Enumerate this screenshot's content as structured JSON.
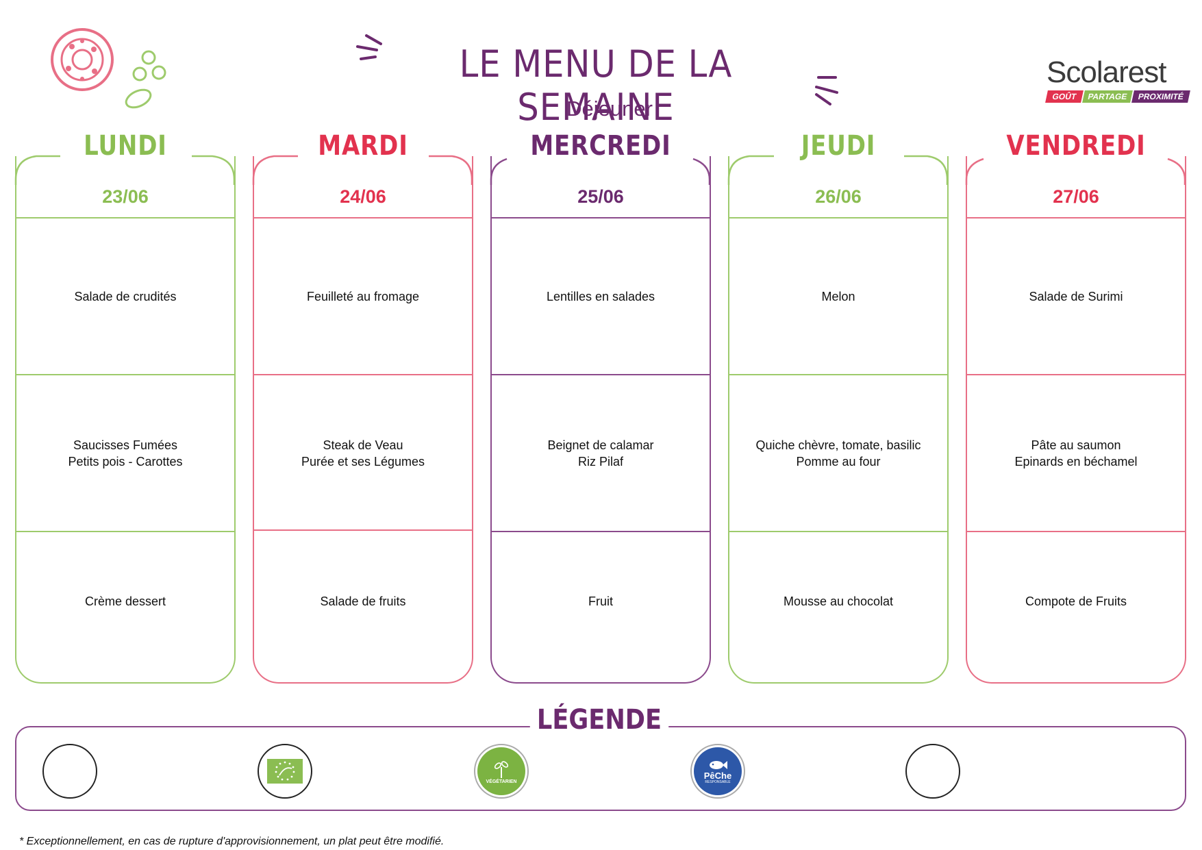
{
  "header": {
    "title": "LE MENU DE LA SEMAINE",
    "subtitle": "Déjeuner"
  },
  "logo": {
    "word": "Scolarest",
    "tagline": [
      "GOÛT",
      "PARTAGE",
      "PROXIMITÉ"
    ]
  },
  "days": [
    {
      "name": "LUNDI",
      "date": "23/06",
      "color": "green",
      "starter": "Salade de crudités",
      "main": "Saucisses Fumées\nPetits pois - Carottes",
      "dessert": "Crème dessert"
    },
    {
      "name": "MARDI",
      "date": "24/06",
      "color": "pink",
      "starter": "Feuilleté au fromage",
      "main": "Steak de Veau\nPurée et ses Légumes",
      "dessert": "Salade de fruits"
    },
    {
      "name": "MERCREDI",
      "date": "25/06",
      "color": "purple",
      "starter": "Lentilles en salades",
      "main": "Beignet de calamar\nRiz Pilaf",
      "dessert": "Fruit"
    },
    {
      "name": "JEUDI",
      "date": "26/06",
      "color": "green",
      "starter": "Melon",
      "main": "Quiche chèvre, tomate, basilic\nPomme au four",
      "dessert": "Mousse au chocolat"
    },
    {
      "name": "VENDREDI",
      "date": "27/06",
      "color": "pink",
      "starter": "Salade de Surimi",
      "main": "Pâte au saumon\nEpinards en béchamel",
      "dessert": "Compote de Fruits"
    }
  ],
  "legend": {
    "title": "LÉGENDE",
    "icons": [
      "empty-icon",
      "organic-eu-icon",
      "vegetarian-icon",
      "responsible-fishing-icon",
      "empty-icon"
    ],
    "vegetarian_label": "VÉGÉTARIEN",
    "fishing_label": "PêChe",
    "fishing_sub": "RESPONSABLE"
  },
  "footnote": "* Exceptionnellement, en cas de rupture d'approvisionnement, un plat peut être modifié.",
  "colors": {
    "green": "#8bbd52",
    "pink": "#e2324e",
    "purple": "#6b2a6e"
  }
}
